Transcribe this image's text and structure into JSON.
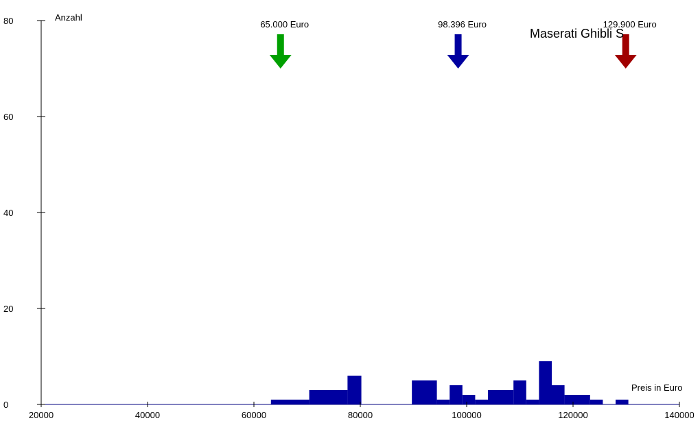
{
  "chart_data": {
    "type": "area",
    "title": "Maserati Ghibli S",
    "xlabel": "Preis in Euro",
    "ylabel": "Anzahl",
    "xlim": [
      20000,
      140000
    ],
    "ylim": [
      0,
      80
    ],
    "x_ticks": [
      20000,
      40000,
      60000,
      80000,
      100000,
      120000,
      140000
    ],
    "y_ticks": [
      0,
      20,
      40,
      60,
      80
    ],
    "grid": false,
    "series": [
      {
        "color": "#0000a0",
        "bins": [
          {
            "x0": 63200,
            "x1": 70400,
            "value": 1
          },
          {
            "x0": 70400,
            "x1": 77600,
            "value": 3
          },
          {
            "x0": 77600,
            "x1": 80200,
            "value": 6
          },
          {
            "x0": 89700,
            "x1": 94400,
            "value": 5
          },
          {
            "x0": 94400,
            "x1": 96800,
            "value": 1
          },
          {
            "x0": 96800,
            "x1": 99200,
            "value": 4
          },
          {
            "x0": 99200,
            "x1": 101600,
            "value": 2
          },
          {
            "x0": 101600,
            "x1": 104000,
            "value": 1
          },
          {
            "x0": 104000,
            "x1": 108800,
            "value": 3
          },
          {
            "x0": 108800,
            "x1": 111200,
            "value": 5
          },
          {
            "x0": 111200,
            "x1": 113600,
            "value": 1
          },
          {
            "x0": 113600,
            "x1": 116000,
            "value": 9
          },
          {
            "x0": 116000,
            "x1": 118400,
            "value": 4
          },
          {
            "x0": 118400,
            "x1": 123200,
            "value": 2
          },
          {
            "x0": 123200,
            "x1": 125600,
            "value": 1
          },
          {
            "x0": 128000,
            "x1": 130400,
            "value": 1
          }
        ]
      }
    ],
    "markers": [
      {
        "x": 65000,
        "label": "65.000 Euro",
        "color": "#00a000"
      },
      {
        "x": 98396,
        "label": "98.396 Euro",
        "color": "#0000a0"
      },
      {
        "x": 129900,
        "label": "129.900 Euro",
        "color": "#a00000"
      }
    ],
    "axis_color": "#000080"
  }
}
